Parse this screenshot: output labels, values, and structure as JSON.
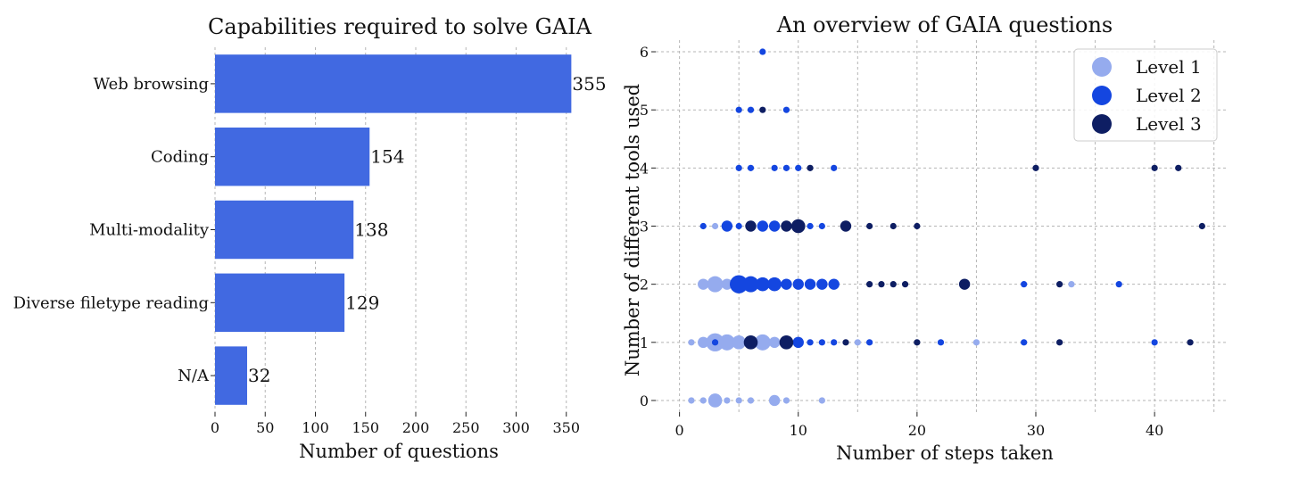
{
  "chart_data": [
    {
      "type": "bar",
      "orientation": "horizontal",
      "title": "Capabilities required to solve GAIA",
      "categories": [
        "Web browsing",
        "Coding",
        "Multi-modality",
        "Diverse filetype reading",
        "N/A"
      ],
      "values": [
        355,
        154,
        138,
        129,
        32
      ],
      "value_labels": [
        "355",
        "154",
        "138",
        "129",
        "32"
      ],
      "xlabel": "Number of questions",
      "ylabel": "",
      "xlim": [
        0,
        360
      ],
      "xticks": [
        0,
        50,
        100,
        150,
        200,
        250,
        300,
        350
      ],
      "xtick_labels": [
        "0",
        "50",
        "100",
        "150",
        "200",
        "250",
        "300",
        "350"
      ],
      "grid": true,
      "color": "#4169e1"
    },
    {
      "type": "scatter",
      "title": "An overview of GAIA questions",
      "xlabel": "Number of steps taken",
      "ylabel": "Number of different tools used",
      "xlim": [
        -2,
        46
      ],
      "ylim": [
        -0.2,
        6.2
      ],
      "xticks": [
        0,
        10,
        20,
        30,
        40
      ],
      "xtick_labels": [
        "0",
        "10",
        "20",
        "30",
        "40"
      ],
      "yticks": [
        0,
        1,
        2,
        3,
        4,
        5,
        6
      ],
      "ytick_labels": [
        "0",
        "1",
        "2",
        "3",
        "4",
        "5",
        "6"
      ],
      "grid": true,
      "legend_position": "top-right",
      "series": [
        {
          "name": "Level 1",
          "color": "#95abee",
          "points": [
            [
              1,
              0,
              1
            ],
            [
              2,
              0,
              1
            ],
            [
              3,
              0,
              3
            ],
            [
              4,
              0,
              1
            ],
            [
              5,
              0,
              1
            ],
            [
              6,
              0,
              1
            ],
            [
              8,
              0,
              2
            ],
            [
              9,
              0,
              1
            ],
            [
              12,
              0,
              1
            ],
            [
              1,
              1,
              1
            ],
            [
              2,
              1,
              2
            ],
            [
              3,
              1,
              5
            ],
            [
              4,
              1,
              4
            ],
            [
              5,
              1,
              3
            ],
            [
              7,
              1,
              4
            ],
            [
              8,
              1,
              2
            ],
            [
              15,
              1,
              1
            ],
            [
              25,
              1,
              1
            ],
            [
              2,
              2,
              2
            ],
            [
              3,
              2,
              4
            ],
            [
              4,
              2,
              2
            ],
            [
              6,
              2,
              2
            ],
            [
              7,
              2,
              2
            ],
            [
              33,
              2,
              1
            ],
            [
              3,
              3,
              1
            ]
          ]
        },
        {
          "name": "Level 2",
          "color": "#1446e0",
          "points": [
            [
              3,
              1,
              1
            ],
            [
              6,
              1,
              2
            ],
            [
              10,
              1,
              2
            ],
            [
              11,
              1,
              1
            ],
            [
              12,
              1,
              1
            ],
            [
              13,
              1,
              1
            ],
            [
              16,
              1,
              1
            ],
            [
              22,
              1,
              1
            ],
            [
              29,
              1,
              1
            ],
            [
              40,
              1,
              1
            ],
            [
              5,
              2,
              5
            ],
            [
              6,
              2,
              4
            ],
            [
              7,
              2,
              3
            ],
            [
              8,
              2,
              3
            ],
            [
              9,
              2,
              2
            ],
            [
              10,
              2,
              2
            ],
            [
              11,
              2,
              2
            ],
            [
              12,
              2,
              2
            ],
            [
              13,
              2,
              2
            ],
            [
              29,
              2,
              1
            ],
            [
              37,
              2,
              1
            ],
            [
              2,
              3,
              1
            ],
            [
              4,
              3,
              2
            ],
            [
              5,
              3,
              1
            ],
            [
              7,
              3,
              2
            ],
            [
              8,
              3,
              2
            ],
            [
              11,
              3,
              1
            ],
            [
              12,
              3,
              1
            ],
            [
              5,
              4,
              1
            ],
            [
              6,
              4,
              1
            ],
            [
              8,
              4,
              1
            ],
            [
              9,
              4,
              1
            ],
            [
              10,
              4,
              1
            ],
            [
              13,
              4,
              1
            ],
            [
              5,
              5,
              1
            ],
            [
              6,
              5,
              1
            ],
            [
              9,
              5,
              1
            ],
            [
              7,
              6,
              1
            ]
          ]
        },
        {
          "name": "Level 3",
          "color": "#0e1e63",
          "points": [
            [
              6,
              1,
              3
            ],
            [
              9,
              1,
              3
            ],
            [
              14,
              1,
              1
            ],
            [
              20,
              1,
              1
            ],
            [
              32,
              1,
              1
            ],
            [
              43,
              1,
              1
            ],
            [
              16,
              2,
              1
            ],
            [
              17,
              2,
              1
            ],
            [
              18,
              2,
              1
            ],
            [
              19,
              2,
              1
            ],
            [
              24,
              2,
              2
            ],
            [
              32,
              2,
              1
            ],
            [
              6,
              3,
              2
            ],
            [
              10,
              3,
              3
            ],
            [
              9,
              3,
              2
            ],
            [
              14,
              3,
              2
            ],
            [
              16,
              3,
              1
            ],
            [
              18,
              3,
              1
            ],
            [
              20,
              3,
              1
            ],
            [
              44,
              3,
              1
            ],
            [
              11,
              4,
              1
            ],
            [
              30,
              4,
              1
            ],
            [
              40,
              4,
              1
            ],
            [
              42,
              4,
              1
            ],
            [
              7,
              5,
              1
            ]
          ]
        }
      ]
    }
  ]
}
